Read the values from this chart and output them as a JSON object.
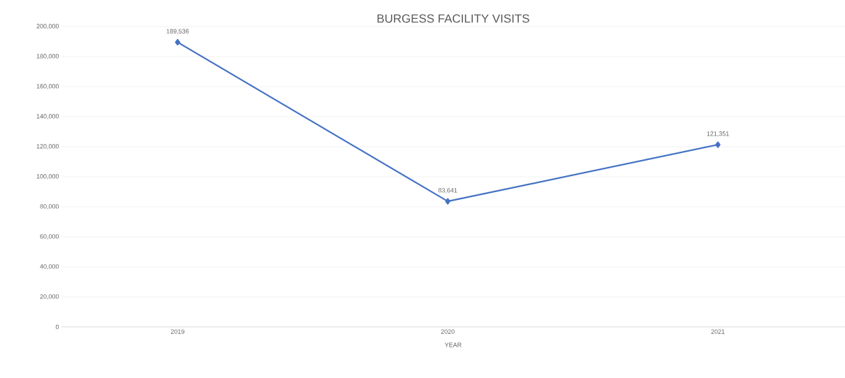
{
  "chart_data": {
    "type": "line",
    "title": "BURGESS FACILITY VISITS",
    "xlabel": "YEAR",
    "categories": [
      "2019",
      "2020",
      "2021"
    ],
    "series": [
      {
        "color": "#4472c4",
        "values": [
          189536,
          83641,
          121351
        ],
        "value_labels": [
          "189,536",
          "83,641",
          "121,351"
        ]
      }
    ],
    "ylim": [
      0,
      200000
    ],
    "yticks": [
      {
        "value": 0,
        "label": "0"
      },
      {
        "value": 20000,
        "label": "20,000"
      },
      {
        "value": 40000,
        "label": "40,000"
      },
      {
        "value": 60000,
        "label": "60,000"
      },
      {
        "value": 80000,
        "label": "80,000"
      },
      {
        "value": 100000,
        "label": "100,000"
      },
      {
        "value": 120000,
        "label": "120,000"
      },
      {
        "value": 140000,
        "label": "140,000"
      },
      {
        "value": 160000,
        "label": "160,000"
      },
      {
        "value": 180000,
        "label": "180,000"
      },
      {
        "value": 200000,
        "label": "200,000"
      }
    ],
    "grid": "y",
    "marker": "diamond",
    "line_style": "solid"
  }
}
